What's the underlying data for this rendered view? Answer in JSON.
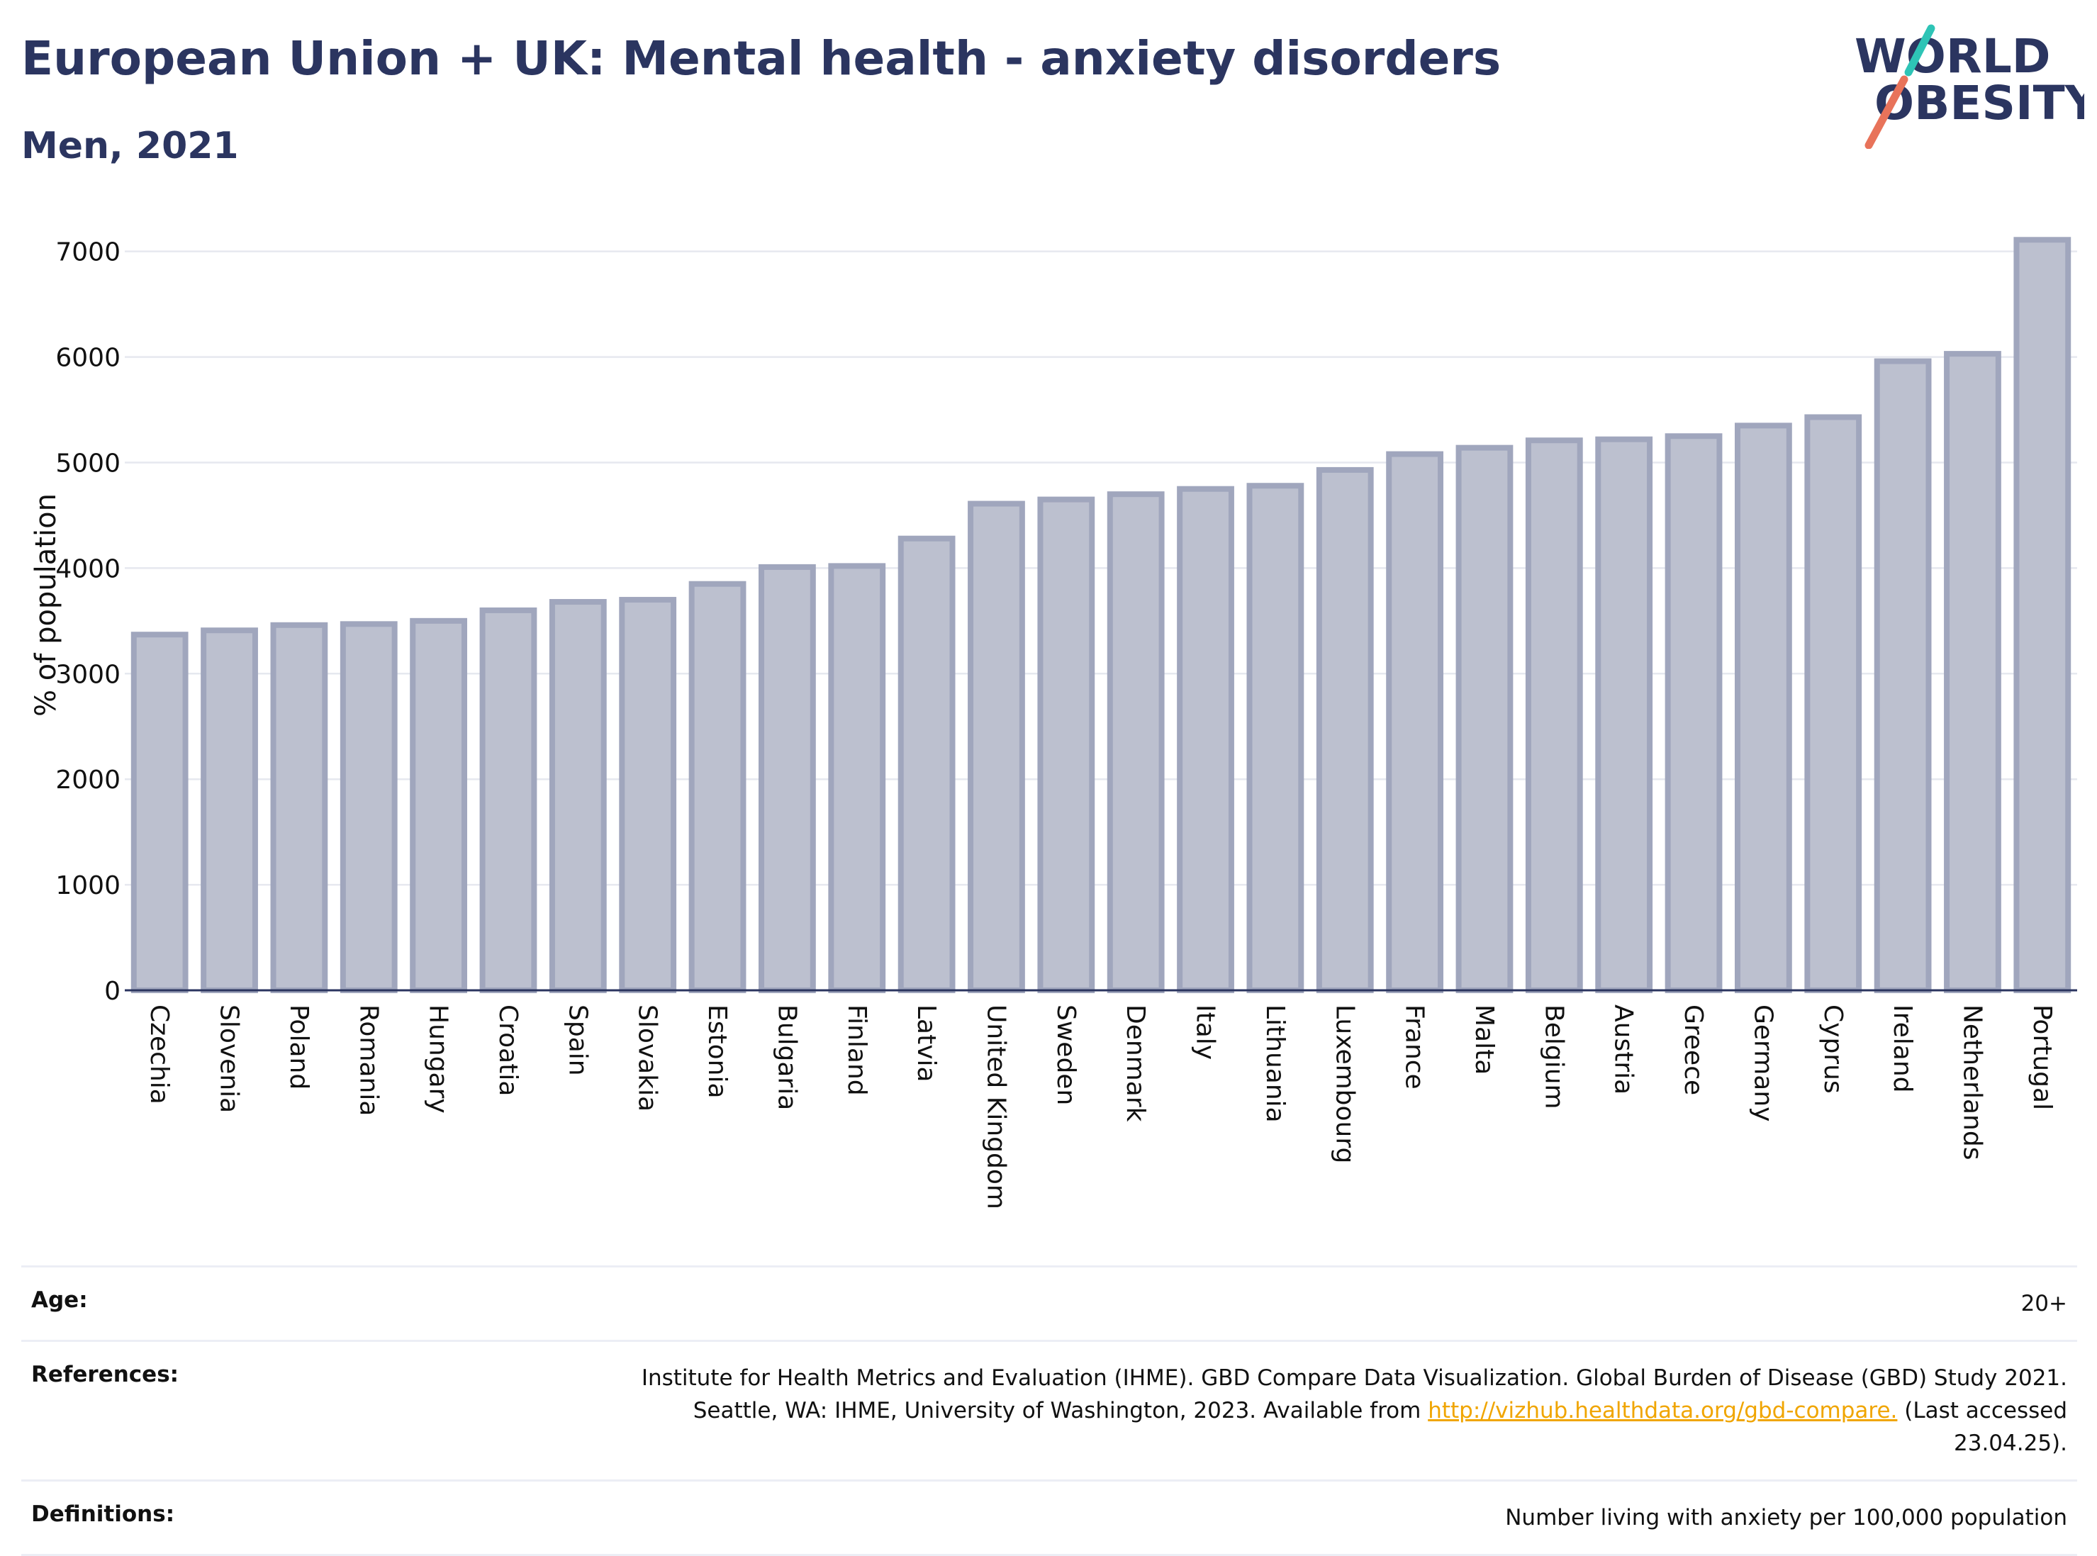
{
  "header": {
    "title": "European Union + UK: Mental health - anxiety disorders",
    "subtitle": "Men, 2021",
    "logo_line1": "WORLD",
    "logo_line2": "OBESITY"
  },
  "colors": {
    "bar_fill": "#bcc0cf",
    "bar_stroke": "#a0a6bd",
    "text": "#2b3560",
    "grid": "#e6e8ef",
    "logo_slash_red": "#e8735a",
    "logo_slash_teal": "#2ec4b6",
    "link": "#f0a500"
  },
  "chart_data": {
    "type": "bar",
    "title": "European Union + UK: Mental health - anxiety disorders",
    "subtitle": "Men, 2021",
    "xlabel": "",
    "ylabel": "% of population",
    "ylim": [
      0,
      7300
    ],
    "yticks": [
      0,
      1000,
      2000,
      3000,
      4000,
      5000,
      6000,
      7000
    ],
    "grid": true,
    "categories": [
      "Czechia",
      "Slovenia",
      "Poland",
      "Romania",
      "Hungary",
      "Croatia",
      "Spain",
      "Slovakia",
      "Estonia",
      "Bulgaria",
      "Finland",
      "Latvia",
      "United Kingdom",
      "Sweden",
      "Denmark",
      "Italy",
      "Lithuania",
      "Luxembourg",
      "France",
      "Malta",
      "Belgium",
      "Austria",
      "Greece",
      "Germany",
      "Cyprus",
      "Ireland",
      "Netherlands",
      "Portugal"
    ],
    "values": [
      3370,
      3410,
      3460,
      3470,
      3500,
      3600,
      3680,
      3700,
      3850,
      4010,
      4020,
      4280,
      4610,
      4650,
      4700,
      4750,
      4780,
      4930,
      5080,
      5140,
      5210,
      5220,
      5250,
      5350,
      5430,
      5960,
      6030,
      7110
    ]
  },
  "info": {
    "age_label": "Age:",
    "age_value": "20+",
    "references_label": "References:",
    "references_text_1": "Institute for Health Metrics and Evaluation (IHME). GBD Compare Data Visualization. Global Burden of Disease (GBD) Study 2021.",
    "references_text_2": "Seattle, WA: IHME, University of Washington, 2023. Available from",
    "references_link": "http://vizhub.healthdata.org/gbd-compare.",
    "references_text_3": "(Last accessed",
    "references_text_4": "23.04.25).",
    "definitions_label": "Definitions:",
    "definitions_value": "Number living with anxiety per 100,000 population"
  }
}
